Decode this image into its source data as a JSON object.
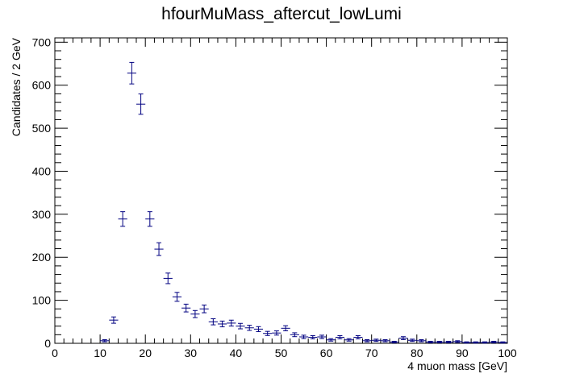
{
  "chart_data": {
    "type": "scatter",
    "title": "hfourMuMass_aftercut_lowLumi",
    "xlabel": "4 muon mass [GeV]",
    "ylabel": "Candidates / 2 GeV",
    "xlim": [
      0,
      100
    ],
    "ylim": [
      0,
      710
    ],
    "x_ticks": [
      0,
      10,
      20,
      30,
      40,
      50,
      60,
      70,
      80,
      90,
      100
    ],
    "y_ticks": [
      0,
      100,
      200,
      300,
      400,
      500,
      600,
      700
    ],
    "bin_width": 2,
    "marker_color": "#000080",
    "grid": false,
    "legend": "none",
    "series": [
      {
        "x": [
          11,
          13,
          15,
          17,
          19,
          21,
          23,
          25,
          27,
          29,
          31,
          33,
          35,
          37,
          39,
          41,
          43,
          45,
          47,
          49,
          51,
          53,
          55,
          57,
          59,
          61,
          63,
          65,
          67,
          69,
          71,
          73,
          75,
          77,
          79,
          81,
          83,
          85,
          87,
          89,
          91,
          93,
          95,
          97,
          99
        ],
        "y": [
          6,
          54,
          289,
          628,
          556,
          289,
          219,
          151,
          108,
          82,
          68,
          80,
          50,
          45,
          47,
          40,
          36,
          33,
          23,
          24,
          35,
          20,
          15,
          14,
          15,
          8,
          14,
          8,
          14,
          6,
          7,
          6,
          3,
          12,
          7,
          6,
          3,
          3,
          3,
          4,
          2,
          2,
          2,
          3,
          2
        ]
      }
    ]
  }
}
